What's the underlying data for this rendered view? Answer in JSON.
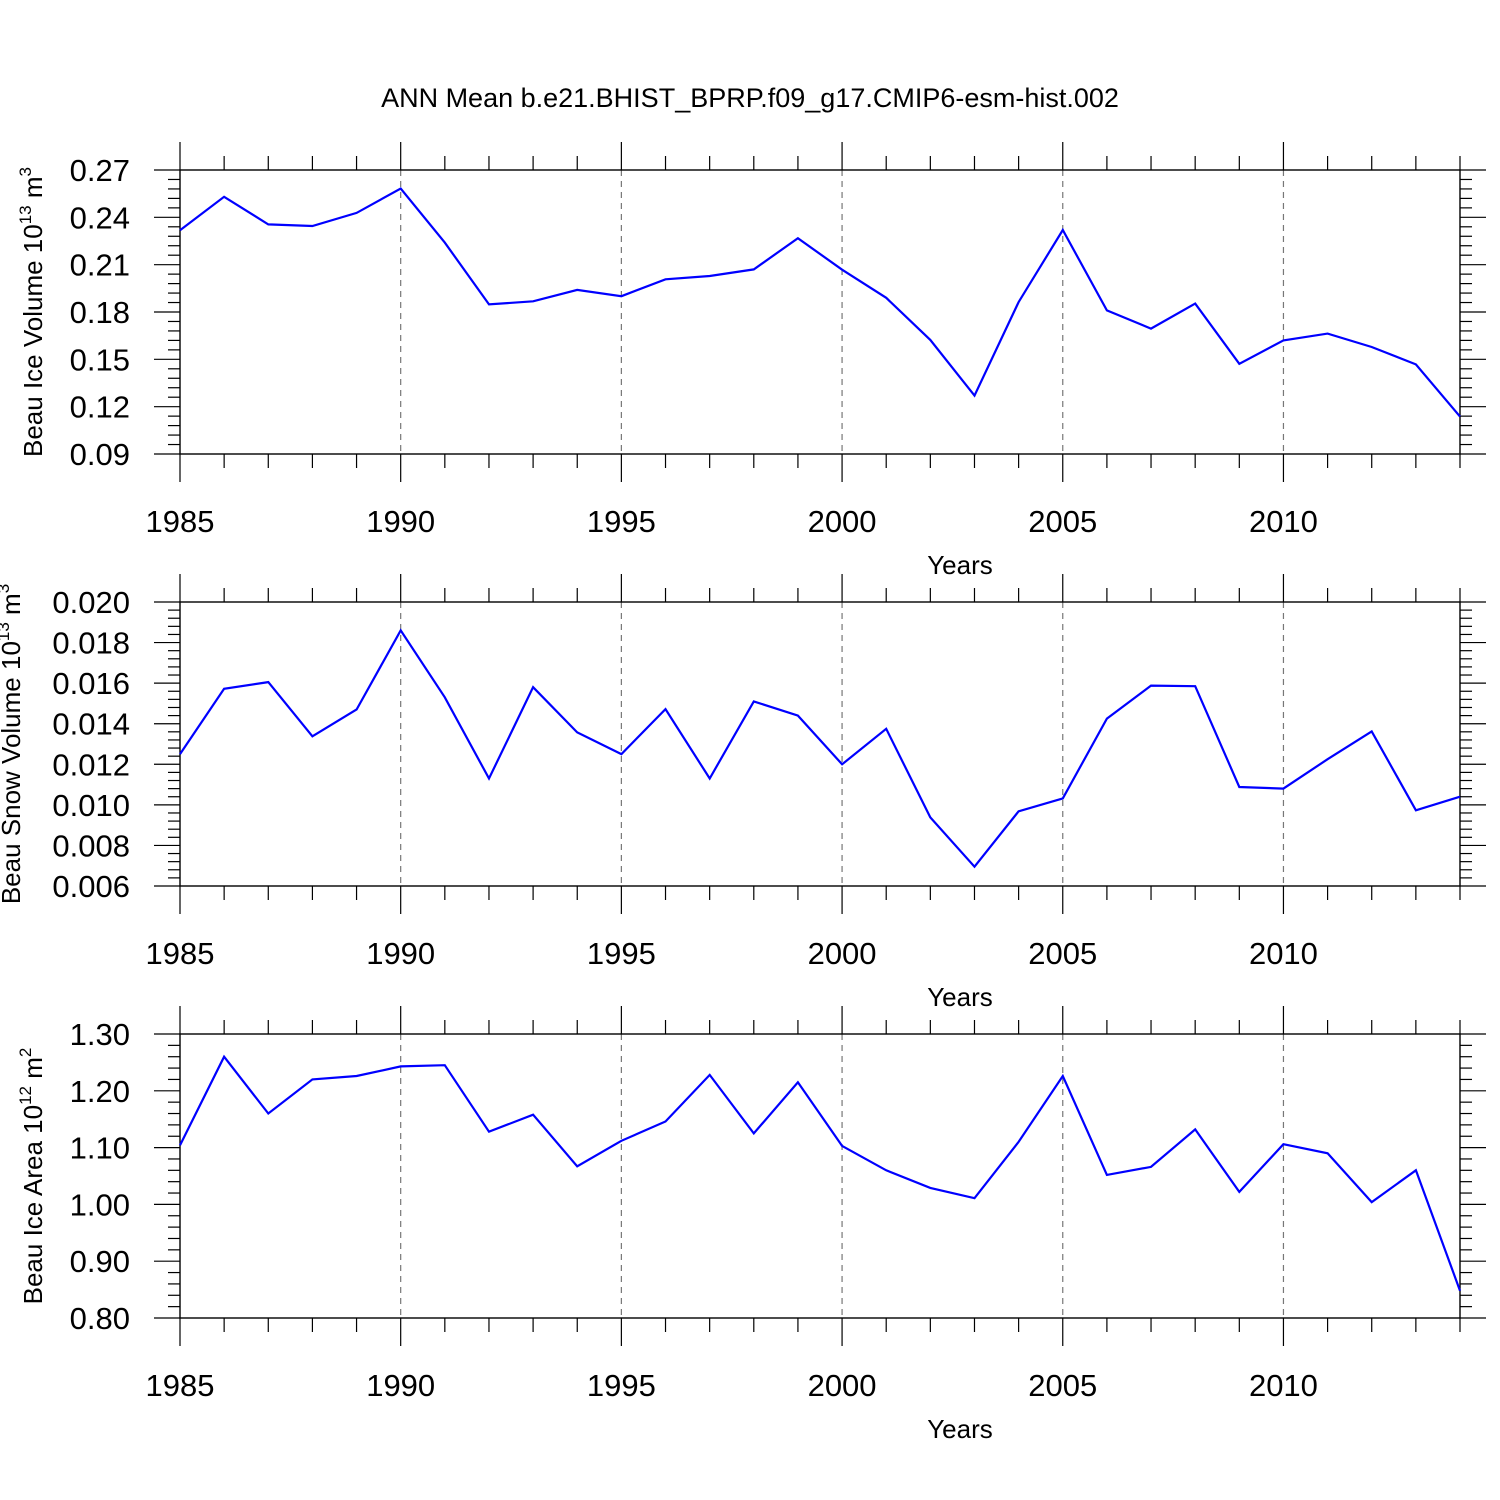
{
  "title": "ANN Mean b.e21.BHIST_BPRP.f09_g17.CMIP6-esm-hist.002",
  "line_color": "#0000ff",
  "chart_data": [
    {
      "type": "line",
      "ylabel": {
        "text": "Beau Ice Volume 10",
        "sup": "13",
        "unit": "m",
        "unit_sup": "3"
      },
      "xlabel": "Years",
      "xlim": [
        1985,
        2014
      ],
      "ylim": [
        0.09,
        0.27
      ],
      "x_ticks": [
        1985,
        1990,
        1995,
        2000,
        2005,
        2010
      ],
      "x_tick_labels": [
        "1985",
        "1990",
        "1995",
        "2000",
        "2005",
        "2010"
      ],
      "y_ticks": [
        0.09,
        0.12,
        0.15,
        0.18,
        0.21,
        0.24,
        0.27
      ],
      "y_tick_labels": [
        "0.09",
        "0.12",
        "0.15",
        "0.18",
        "0.21",
        "0.24",
        "0.27"
      ],
      "y_minor_step": 0.006,
      "grid": "vertical dashed at major x ticks",
      "series": [
        {
          "x": [
            1985,
            1986,
            1987,
            1988,
            1989,
            1990,
            1991,
            1992,
            1993,
            1994,
            1995,
            1996,
            1997,
            1998,
            1999,
            2000,
            2001,
            2002,
            2003,
            2004,
            2005,
            2006,
            2007,
            2008,
            2009,
            2010,
            2011,
            2012,
            2013,
            2014
          ],
          "values": [
            0.2318,
            0.253,
            0.2355,
            0.2345,
            0.2428,
            0.2583,
            0.224,
            0.1848,
            0.1868,
            0.194,
            0.19,
            0.2007,
            0.2028,
            0.207,
            0.2268,
            0.2068,
            0.189,
            0.1623,
            0.127,
            0.1863,
            0.232,
            0.181,
            0.1695,
            0.1853,
            0.1472,
            0.162,
            0.1663,
            0.1578,
            0.1468,
            0.1137
          ]
        }
      ]
    },
    {
      "type": "line",
      "ylabel": {
        "text": "Beau Snow Volume 10",
        "sup": "13",
        "unit": "m",
        "unit_sup": "3"
      },
      "xlabel": "Years",
      "xlim": [
        1985,
        2014
      ],
      "ylim": [
        0.006,
        0.02
      ],
      "x_ticks": [
        1985,
        1990,
        1995,
        2000,
        2005,
        2010
      ],
      "x_tick_labels": [
        "1985",
        "1990",
        "1995",
        "2000",
        "2005",
        "2010"
      ],
      "y_ticks": [
        0.006,
        0.008,
        0.01,
        0.012,
        0.014,
        0.016,
        0.018,
        0.02
      ],
      "y_tick_labels": [
        "0.006",
        "0.008",
        "0.010",
        "0.012",
        "0.014",
        "0.016",
        "0.018",
        "0.020"
      ],
      "y_minor_step": 0.0004,
      "grid": "vertical dashed at major x ticks",
      "series": [
        {
          "x": [
            1985,
            1986,
            1987,
            1988,
            1989,
            1990,
            1991,
            1992,
            1993,
            1994,
            1995,
            1996,
            1997,
            1998,
            1999,
            2000,
            2001,
            2002,
            2003,
            2004,
            2005,
            2006,
            2007,
            2008,
            2009,
            2010,
            2011,
            2012,
            2013,
            2014
          ],
          "values": [
            0.0125,
            0.01572,
            0.01605,
            0.01338,
            0.0147,
            0.0186,
            0.0153,
            0.0113,
            0.0158,
            0.01357,
            0.0125,
            0.01472,
            0.0113,
            0.0151,
            0.0144,
            0.012,
            0.01375,
            0.00938,
            0.00695,
            0.00968,
            0.01032,
            0.01425,
            0.01588,
            0.01585,
            0.01088,
            0.0108,
            0.01225,
            0.01362,
            0.00973,
            0.0104
          ]
        }
      ]
    },
    {
      "type": "line",
      "ylabel": {
        "text": "Beau Ice Area 10",
        "sup": "12",
        "unit": "m",
        "unit_sup": "2"
      },
      "xlabel": "Years",
      "xlim": [
        1985,
        2014
      ],
      "ylim": [
        0.8,
        1.3
      ],
      "x_ticks": [
        1985,
        1990,
        1995,
        2000,
        2005,
        2010
      ],
      "x_tick_labels": [
        "1985",
        "1990",
        "1995",
        "2000",
        "2005",
        "2010"
      ],
      "y_ticks": [
        0.8,
        0.9,
        1.0,
        1.1,
        1.2,
        1.3
      ],
      "y_tick_labels": [
        "0.80",
        "0.90",
        "1.00",
        "1.10",
        "1.20",
        "1.30"
      ],
      "y_minor_step": 0.02,
      "grid": "vertical dashed at major x ticks",
      "series": [
        {
          "x": [
            1985,
            1986,
            1987,
            1988,
            1989,
            1990,
            1991,
            1992,
            1993,
            1994,
            1995,
            1996,
            1997,
            1998,
            1999,
            2000,
            2001,
            2002,
            2003,
            2004,
            2005,
            2006,
            2007,
            2008,
            2009,
            2010,
            2011,
            2012,
            2013,
            2014
          ],
          "values": [
            1.104,
            1.26,
            1.16,
            1.22,
            1.226,
            1.243,
            1.245,
            1.128,
            1.158,
            1.067,
            1.112,
            1.146,
            1.228,
            1.125,
            1.215,
            1.103,
            1.06,
            1.029,
            1.011,
            1.11,
            1.226,
            1.052,
            1.066,
            1.132,
            1.022,
            1.106,
            1.09,
            1.004,
            1.06,
            0.848
          ]
        }
      ]
    }
  ]
}
